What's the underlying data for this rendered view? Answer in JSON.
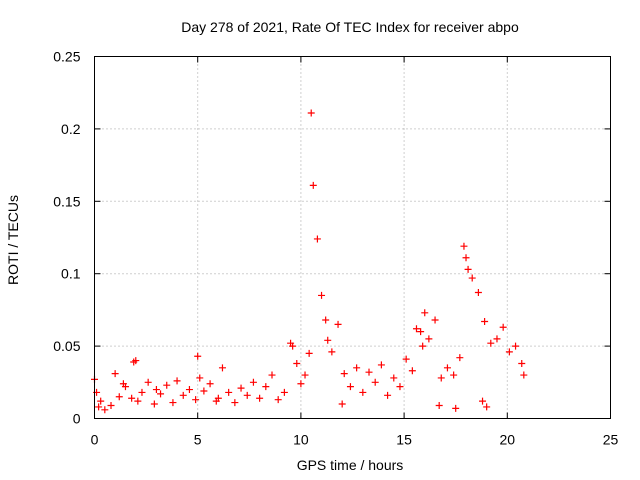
{
  "chart_data": {
    "type": "scatter",
    "title": "Day 278 of 2021, Rate Of TEC Index for receiver abpo",
    "xlabel": "GPS time / hours",
    "ylabel": "ROTI / TECUs",
    "xlim": [
      0,
      25
    ],
    "ylim": [
      0,
      0.25
    ],
    "x_ticks": [
      "0",
      "5",
      "10",
      "15",
      "20",
      "25"
    ],
    "y_ticks": [
      "0",
      "0.05",
      "0.1",
      "0.15",
      "0.2",
      "0.25"
    ],
    "grid": true,
    "marker": "+",
    "series": [
      {
        "color": "#ff0000",
        "x": [
          0.0,
          0.1,
          0.2,
          0.3,
          0.5,
          0.8,
          1.0,
          1.2,
          1.5,
          1.8,
          1.9,
          2.0,
          2.1,
          2.3,
          2.6,
          2.9,
          3.2,
          3.5,
          3.8,
          4.0,
          4.3,
          4.6,
          4.9,
          5.0,
          5.1,
          5.3,
          5.6,
          5.9,
          6.2,
          6.5,
          6.8,
          7.1,
          7.4,
          7.7,
          8.0,
          8.3,
          8.6,
          8.9,
          9.2,
          9.5,
          9.6,
          9.8,
          10.0,
          10.2,
          10.4,
          10.5,
          10.6,
          10.8,
          11.0,
          11.2,
          11.3,
          11.5,
          11.8,
          12.1,
          12.4,
          12.7,
          13.0,
          13.3,
          13.6,
          13.9,
          14.2,
          14.5,
          14.8,
          15.1,
          15.4,
          15.6,
          15.8,
          15.9,
          16.0,
          16.2,
          16.5,
          16.8,
          17.1,
          17.4,
          17.7,
          17.9,
          18.0,
          18.1,
          18.3,
          18.6,
          18.9,
          19.2,
          19.5,
          19.8,
          20.1,
          20.4,
          20.7,
          20.8,
          1.4,
          3.0,
          6.0,
          12.0,
          19.0,
          18.8,
          17.5,
          16.7
        ],
        "y": [
          0.027,
          0.018,
          0.008,
          0.012,
          0.006,
          0.009,
          0.031,
          0.015,
          0.022,
          0.014,
          0.039,
          0.04,
          0.012,
          0.018,
          0.025,
          0.01,
          0.017,
          0.023,
          0.011,
          0.026,
          0.016,
          0.02,
          0.013,
          0.043,
          0.028,
          0.019,
          0.024,
          0.012,
          0.035,
          0.018,
          0.011,
          0.021,
          0.016,
          0.025,
          0.014,
          0.022,
          0.03,
          0.013,
          0.018,
          0.052,
          0.05,
          0.038,
          0.024,
          0.03,
          0.045,
          0.211,
          0.161,
          0.124,
          0.085,
          0.068,
          0.054,
          0.046,
          0.065,
          0.031,
          0.022,
          0.035,
          0.018,
          0.032,
          0.025,
          0.037,
          0.016,
          0.028,
          0.022,
          0.041,
          0.033,
          0.062,
          0.06,
          0.05,
          0.073,
          0.055,
          0.068,
          0.028,
          0.035,
          0.03,
          0.042,
          0.119,
          0.111,
          0.103,
          0.097,
          0.087,
          0.067,
          0.052,
          0.055,
          0.063,
          0.046,
          0.05,
          0.038,
          0.03,
          0.024,
          0.02,
          0.014,
          0.01,
          0.008,
          0.012,
          0.007,
          0.009
        ]
      }
    ]
  }
}
